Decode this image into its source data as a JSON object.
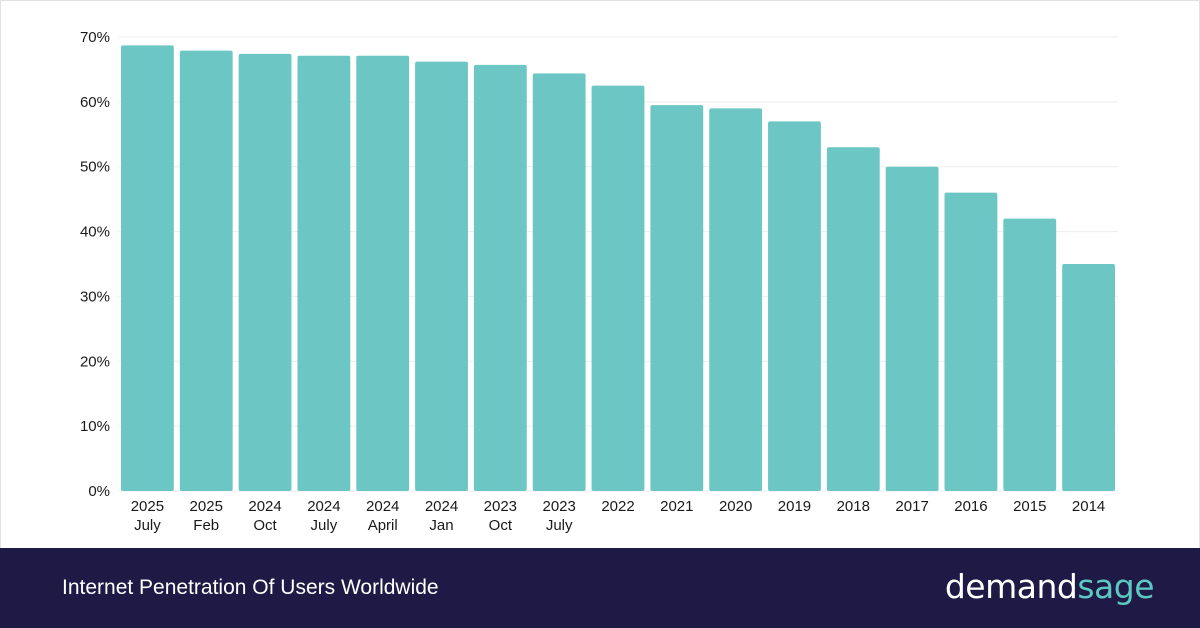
{
  "chart_data": {
    "type": "bar",
    "title": "Internet Penetration Of Users Worldwide",
    "categories": [
      [
        "2025",
        "July"
      ],
      [
        "2025",
        "Feb"
      ],
      [
        "2024",
        "Oct"
      ],
      [
        "2024",
        "July"
      ],
      [
        "2024",
        "April"
      ],
      [
        "2024",
        "Jan"
      ],
      [
        "2023",
        "Oct"
      ],
      [
        "2023",
        "July"
      ],
      [
        "2022"
      ],
      [
        "2021"
      ],
      [
        "2020"
      ],
      [
        "2019"
      ],
      [
        "2018"
      ],
      [
        "2017"
      ],
      [
        "2016"
      ],
      [
        "2015"
      ],
      [
        "2014"
      ]
    ],
    "values": [
      68.7,
      67.9,
      67.4,
      67.1,
      67.1,
      66.2,
      65.7,
      64.4,
      62.5,
      59.5,
      59,
      57,
      53,
      50,
      46,
      42,
      35
    ],
    "ylim": [
      0,
      70
    ],
    "yticks": [
      0,
      10,
      20,
      30,
      40,
      50,
      60,
      70
    ],
    "ytick_labels": [
      "0%",
      "10%",
      "20%",
      "30%",
      "40%",
      "50%",
      "60%",
      "70%"
    ],
    "grid": true,
    "bar_color": "#6cc6c3"
  },
  "footer": {
    "title": "Internet Penetration Of Users Worldwide",
    "brand_part1": "demand",
    "brand_part2": "sage"
  }
}
